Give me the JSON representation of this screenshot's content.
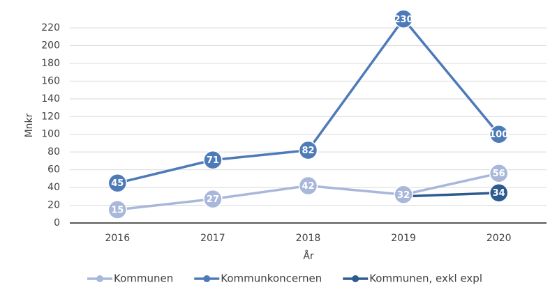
{
  "chart_data": {
    "type": "line",
    "categories": [
      "2016",
      "2017",
      "2018",
      "2019",
      "2020"
    ],
    "series": [
      {
        "name": "Kommunen",
        "color": "#a8b7da",
        "values": [
          15,
          27,
          42,
          32,
          56
        ]
      },
      {
        "name": "Kommunkoncernen",
        "color": "#4d7ab8",
        "values": [
          45,
          71,
          82,
          230,
          100
        ]
      },
      {
        "name": "Kommunen, exkl expl",
        "color": "#2d5a8f",
        "values": [
          null,
          null,
          null,
          30,
          34
        ],
        "value_labels": [
          null,
          null,
          null,
          null,
          "34"
        ]
      }
    ],
    "ylim": [
      0,
      220
    ],
    "yticks": [
      0,
      20,
      40,
      60,
      80,
      100,
      120,
      140,
      160,
      180,
      200,
      220
    ],
    "ylabel": "Mnkr",
    "xlabel": "År",
    "grid": true,
    "legend": "bottom"
  }
}
